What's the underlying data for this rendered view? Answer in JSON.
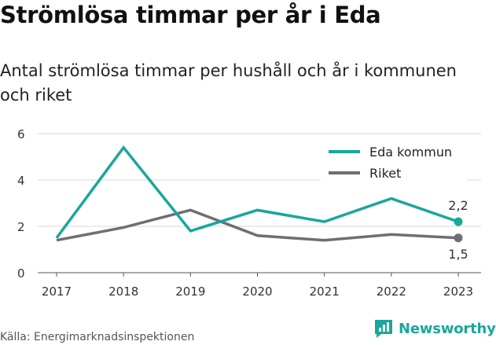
{
  "title": "Strömlösa timmar per år i Eda",
  "subtitle": "Antal strömlösa timmar per hushåll och år i kommunen och riket",
  "source": "Källa: Energimarknadsinspektionen",
  "brand": {
    "name": "Newsworthy",
    "icon": "newsworthy-logo-icon",
    "color": "#19a79b"
  },
  "chart_data": {
    "type": "line",
    "x": [
      "2017",
      "2018",
      "2019",
      "2020",
      "2021",
      "2022",
      "2023"
    ],
    "ylim": [
      0,
      6
    ],
    "yticks": [
      "0",
      "2",
      "4",
      "6"
    ],
    "grid": true,
    "legend_position": "top-right",
    "series": [
      {
        "name": "Eda kommun",
        "color": "#19a79b",
        "values": [
          1.5,
          5.4,
          1.8,
          2.7,
          2.2,
          3.2,
          2.2
        ],
        "end_label": "2,2"
      },
      {
        "name": "Riket",
        "color": "#6f6e73",
        "values": [
          1.4,
          1.95,
          2.7,
          1.6,
          1.4,
          1.65,
          1.5
        ],
        "end_label": "1,5"
      }
    ]
  }
}
